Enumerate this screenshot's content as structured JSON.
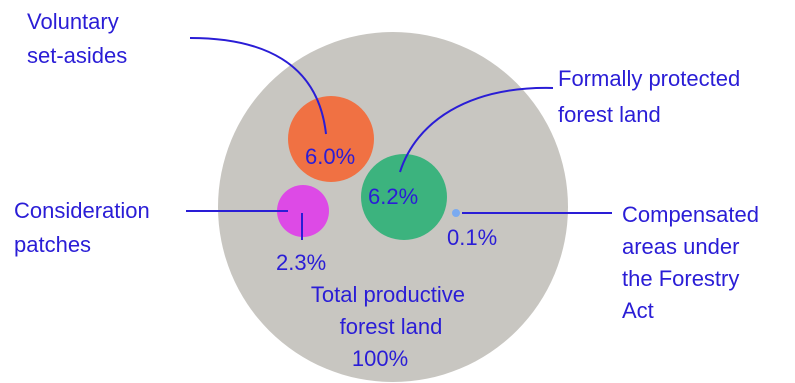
{
  "diagram": {
    "total": {
      "label_lines": [
        "Total productive",
        "forest land"
      ],
      "value": "100%",
      "color": "#c8c6c1",
      "share": 100
    },
    "segments": [
      {
        "id": "voluntary-set-asides",
        "label_lines": [
          "Voluntary",
          "set-asides"
        ],
        "value": "6.0%",
        "share": 6.0,
        "color": "#f07143"
      },
      {
        "id": "formally-protected-forest-land",
        "label_lines": [
          "Formally protected",
          "forest land"
        ],
        "value": "6.2%",
        "share": 6.2,
        "color": "#3cb37e"
      },
      {
        "id": "consideration-patches",
        "label_lines": [
          "Consideration",
          "patches"
        ],
        "value": "2.3%",
        "share": 2.3,
        "color": "#dd4ae6"
      },
      {
        "id": "compensated-areas",
        "label_lines": [
          "Compensated",
          "areas under",
          "the Forestry",
          "Act"
        ],
        "value": "0.1%",
        "share": 0.1,
        "color": "#7aaaf0"
      }
    ],
    "text_color": "#2a1dd6"
  }
}
